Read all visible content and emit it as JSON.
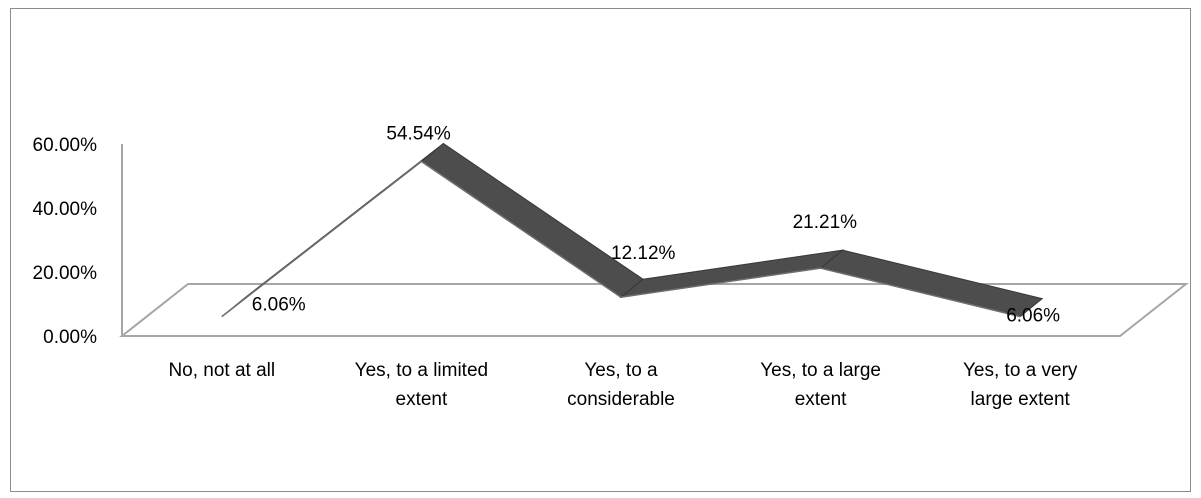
{
  "chart_data": {
    "type": "line",
    "variant": "3d-ribbon",
    "categories": [
      "No, not at all",
      "Yes, to a limited extent",
      "Yes, to a considerable",
      "Yes, to a large extent",
      "Yes, to a very large extent"
    ],
    "category_lines": [
      [
        "No, not at all"
      ],
      [
        "Yes, to a limited",
        "extent"
      ],
      [
        "Yes, to a",
        "considerable"
      ],
      [
        "Yes, to a large",
        "extent"
      ],
      [
        "Yes, to a very",
        "large extent"
      ]
    ],
    "values": [
      6.06,
      54.54,
      12.12,
      21.21,
      6.06
    ],
    "data_labels": [
      "6.06%",
      "54.54%",
      "12.12%",
      "21.21%",
      "6.06%"
    ],
    "y_ticks": [
      "0.00%",
      "20.00%",
      "40.00%",
      "60.00%"
    ],
    "y_tick_values": [
      0,
      20,
      40,
      60
    ],
    "ylim": [
      0,
      60
    ],
    "title": "",
    "xlabel": "",
    "ylabel": "",
    "legend": "none",
    "grid": false,
    "colors": {
      "ribbon": "#4d4d4d",
      "ribbon_top": "#383838",
      "floor": "#a6a6a6",
      "axis": "#a6a6a6"
    }
  }
}
